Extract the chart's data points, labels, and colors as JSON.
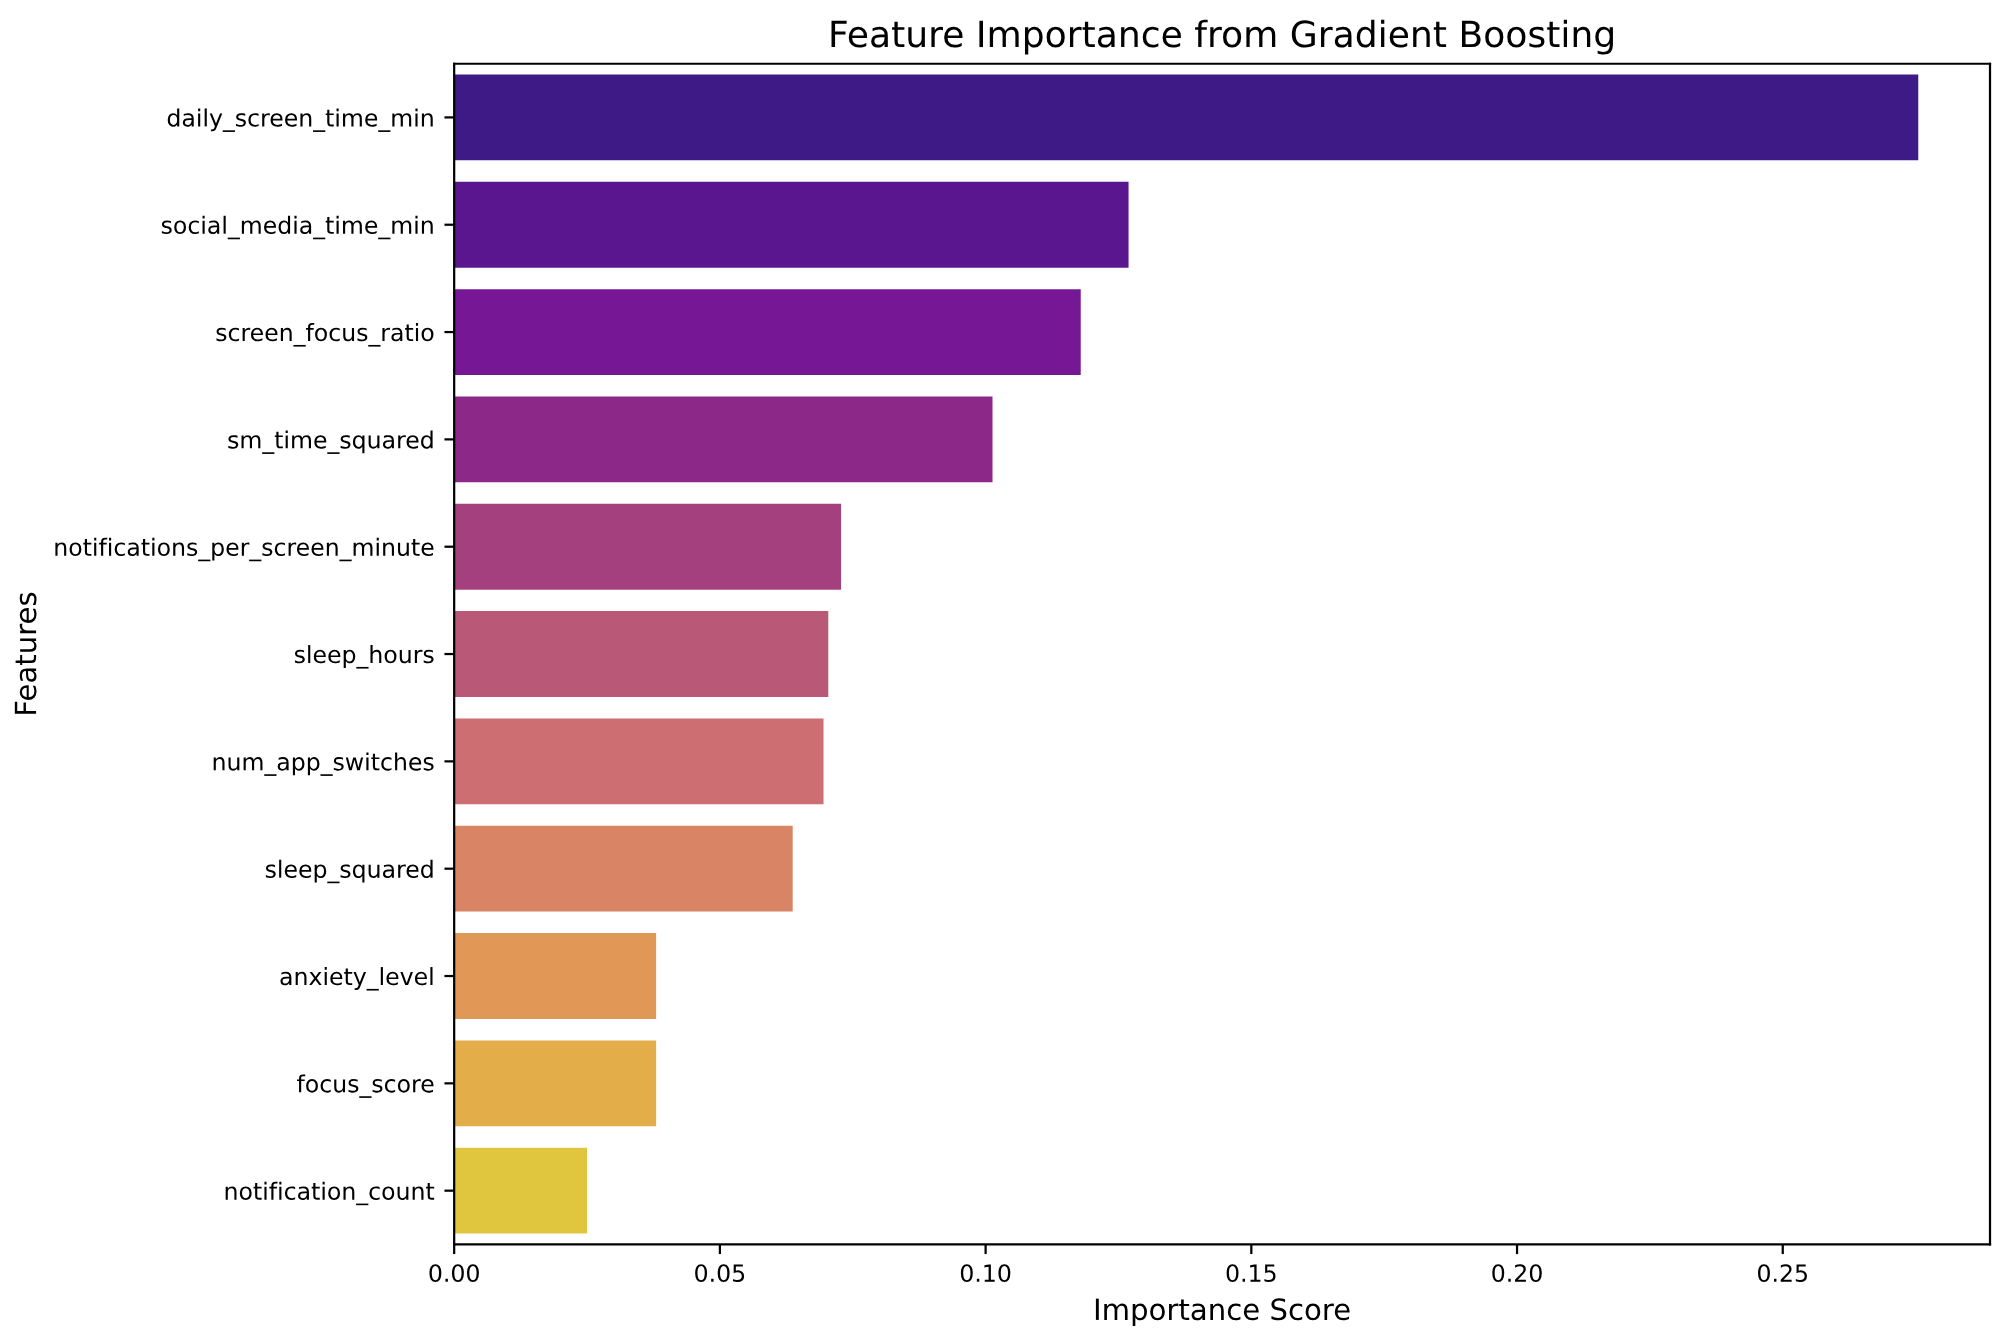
{
  "chart_data": {
    "type": "bar",
    "orientation": "horizontal",
    "title": "Feature Importance from Gradient Boosting",
    "xlabel": "Importance Score",
    "ylabel": "Features",
    "categories": [
      "daily_screen_time_min",
      "social_media_time_min",
      "screen_focus_ratio",
      "sm_time_squared",
      "notifications_per_screen_minute",
      "sleep_hours",
      "num_app_switches",
      "sleep_squared",
      "anxiety_level",
      "focus_score",
      "notification_count"
    ],
    "values": [
      0.2755,
      0.1269,
      0.1179,
      0.1013,
      0.0728,
      0.0704,
      0.0695,
      0.0637,
      0.038,
      0.038,
      0.025
    ],
    "colors": [
      "#3e1a87",
      "#5a168f",
      "#761895",
      "#8b2888",
      "#a4407e",
      "#ba5877",
      "#cd6f72",
      "#da8466",
      "#e19857",
      "#e3ad4a",
      "#e0c63f"
    ],
    "xlim": [
      0,
      0.289
    ],
    "xticks": [
      {
        "value": 0,
        "label": "0.00"
      },
      {
        "value": 0.05,
        "label": "0.05"
      },
      {
        "value": 0.1,
        "label": "0.10"
      },
      {
        "value": 0.15,
        "label": "0.15"
      },
      {
        "value": 0.2,
        "label": "0.20"
      },
      {
        "value": 0.25,
        "label": "0.25"
      }
    ],
    "grid": false
  }
}
